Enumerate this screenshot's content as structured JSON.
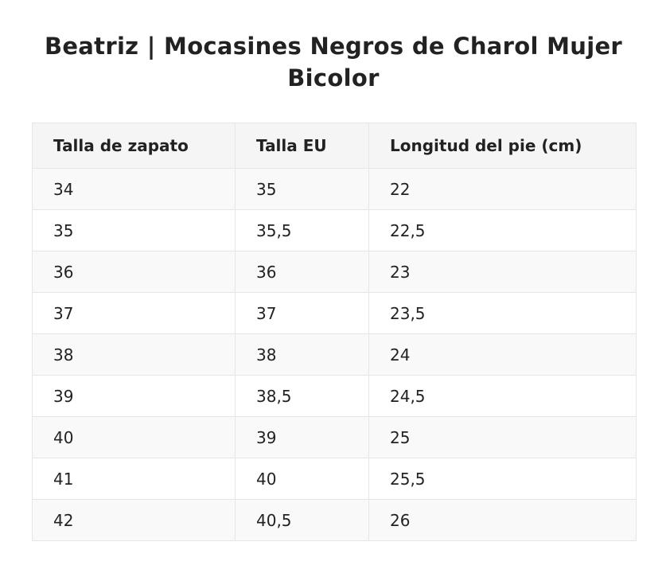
{
  "page": {
    "title": "Beatriz | Mocasines Negros de Charol Mujer Bicolor"
  },
  "table": {
    "headers": [
      "Talla de zapato",
      "Talla EU",
      "Longitud del pie (cm)"
    ],
    "rows": [
      [
        "34",
        "35",
        "22"
      ],
      [
        "35",
        "35,5",
        "22,5"
      ],
      [
        "36",
        "36",
        "23"
      ],
      [
        "37",
        "37",
        "23,5"
      ],
      [
        "38",
        "38",
        "24"
      ],
      [
        "39",
        "38,5",
        "24,5"
      ],
      [
        "40",
        "39",
        "25"
      ],
      [
        "41",
        "40",
        "25,5"
      ],
      [
        "42",
        "40,5",
        "26"
      ]
    ]
  }
}
